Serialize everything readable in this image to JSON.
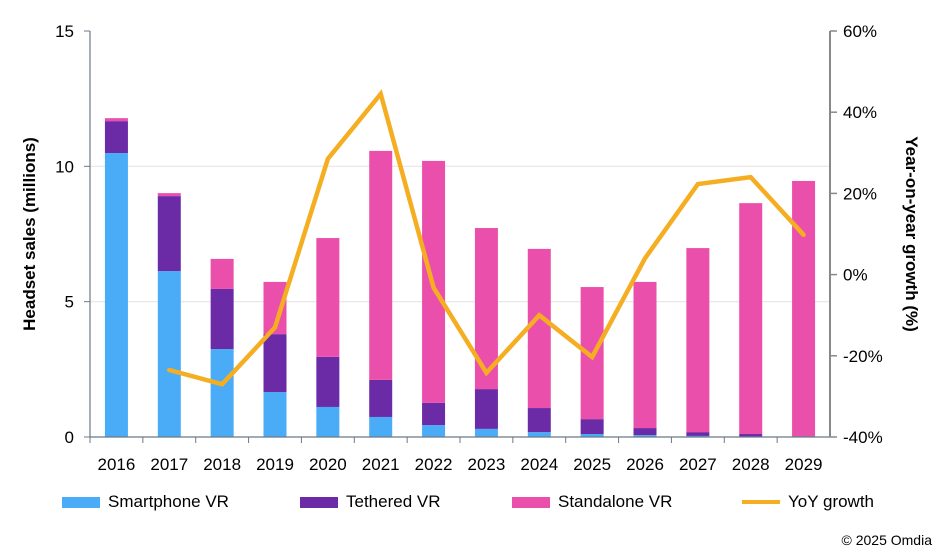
{
  "chart_data": {
    "type": "bar",
    "stacked": true,
    "categories": [
      "2016",
      "2017",
      "2018",
      "2019",
      "2020",
      "2021",
      "2022",
      "2023",
      "2024",
      "2025",
      "2026",
      "2027",
      "2028",
      "2029"
    ],
    "series": [
      {
        "name": "Smartphone VR",
        "type": "bar",
        "axis": "left",
        "color": "#4aacf7",
        "values": [
          10.49,
          6.13,
          3.25,
          1.66,
          1.11,
          0.74,
          0.44,
          0.3,
          0.18,
          0.11,
          0.07,
          0.04,
          0.02,
          0.01
        ]
      },
      {
        "name": "Tethered VR",
        "type": "bar",
        "axis": "left",
        "color": "#6b2aa6",
        "values": [
          1.18,
          2.77,
          2.22,
          2.14,
          1.85,
          1.37,
          0.82,
          1.47,
          0.89,
          0.55,
          0.26,
          0.14,
          0.09,
          0.02
        ]
      },
      {
        "name": "Standalone VR",
        "type": "bar",
        "axis": "left",
        "color": "#ea4fab",
        "values": [
          0.11,
          0.11,
          1.11,
          1.93,
          4.39,
          8.46,
          8.94,
          5.95,
          5.88,
          4.88,
          5.4,
          6.8,
          8.53,
          9.43
        ]
      },
      {
        "name": "YoY growth",
        "type": "line",
        "axis": "right",
        "color": "#f5ae22",
        "values": [
          null,
          -23.5,
          -27.0,
          -13.0,
          28.5,
          44.5,
          -3.2,
          -24.2,
          -10.0,
          -20.3,
          4.0,
          22.3,
          24.0,
          9.8
        ]
      }
    ],
    "ylabel": "Headset sales (millions)",
    "ylim": [
      0,
      15
    ],
    "yticks": [
      "0",
      "5",
      "10",
      "15"
    ],
    "y2label": "Year-on-year growth (%)",
    "y2lim": [
      -40,
      60
    ],
    "y2ticks": [
      "-40%",
      "-20%",
      "0%",
      "20%",
      "40%",
      "60%"
    ],
    "grid": true,
    "legend_position": "bottom"
  },
  "copyright": "© 2025 Omdia"
}
